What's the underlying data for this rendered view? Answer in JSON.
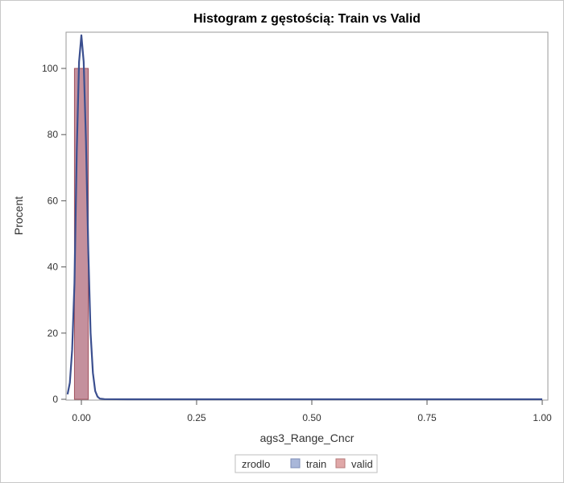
{
  "chart_data": {
    "type": "bar",
    "title": "Histogram z gęstością: Train vs Valid",
    "xlabel": "ags3_Range_Cncr",
    "ylabel": "Procent",
    "xlim": [
      -0.03,
      1.0
    ],
    "ylim": [
      0,
      110
    ],
    "x_ticks": [
      "0.00",
      "0.25",
      "0.50",
      "0.75",
      "1.00"
    ],
    "x_tick_values": [
      0,
      0.25,
      0.5,
      0.75,
      1.0
    ],
    "y_ticks": [
      "0",
      "20",
      "40",
      "60",
      "80",
      "100"
    ],
    "y_tick_values": [
      0,
      20,
      40,
      60,
      80,
      100
    ],
    "grid": false,
    "legend": {
      "title": "zrodlo",
      "placement": "bottom-center",
      "entries": [
        {
          "name": "train",
          "color": "#a9b7d9"
        },
        {
          "name": "valid",
          "color": "#e0a8a8"
        }
      ]
    },
    "series": [
      {
        "name": "train",
        "kind": "histogram",
        "bins": [
          {
            "x0": -0.015,
            "x1": 0.015,
            "value": 100
          }
        ],
        "fill": "#a9b7d9"
      },
      {
        "name": "valid",
        "kind": "histogram",
        "bins": [
          {
            "x0": -0.015,
            "x1": 0.015,
            "value": 100
          }
        ],
        "fill": "#c98a92",
        "stroke": "#a0505c"
      },
      {
        "name": "density",
        "kind": "line",
        "color": "#3b4f8f",
        "x": [
          -0.03,
          -0.025,
          -0.02,
          -0.015,
          -0.01,
          -0.005,
          0.0,
          0.005,
          0.01,
          0.015,
          0.02,
          0.025,
          0.03,
          0.035,
          0.04,
          0.05,
          0.1,
          0.25,
          0.5,
          0.75,
          1.0
        ],
        "y": [
          1.5,
          5,
          15,
          35,
          75,
          102,
          110,
          102,
          78,
          45,
          20,
          8,
          2.5,
          0.8,
          0.2,
          0.05,
          0,
          0,
          0,
          0,
          0
        ]
      }
    ]
  }
}
